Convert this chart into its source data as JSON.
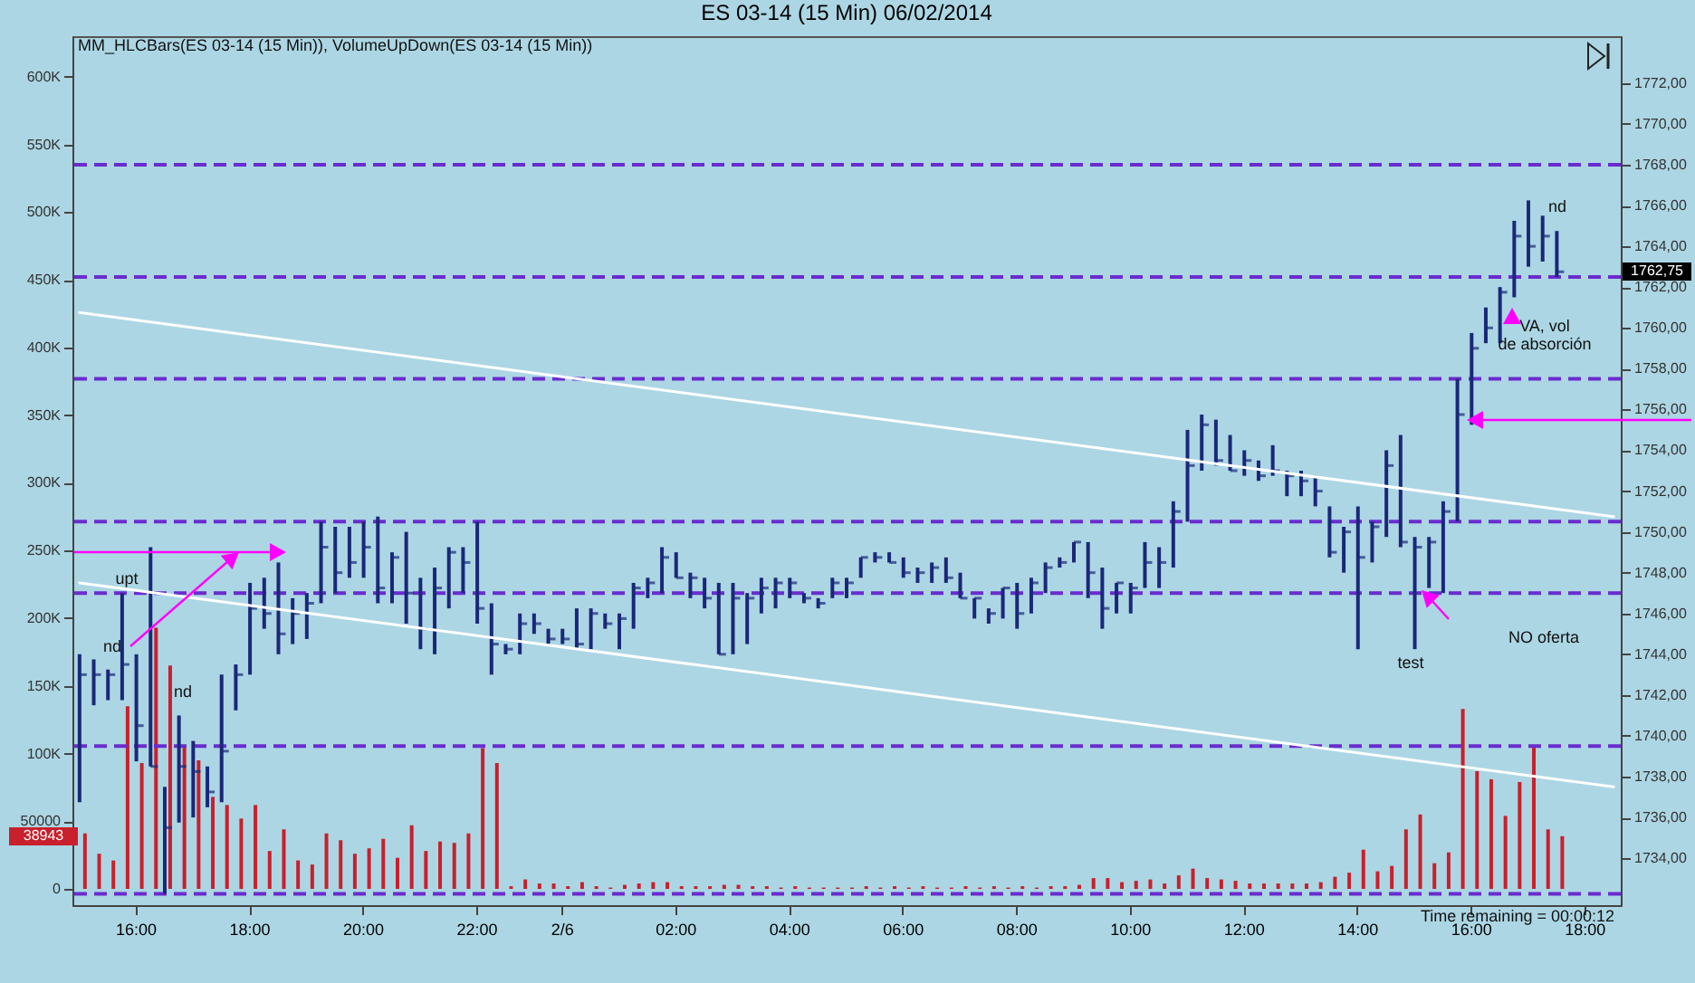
{
  "chart_data": {
    "type": "bar",
    "title": "ES 03-14 (15 Min)  06/02/2014",
    "categories": [
      null,
      null,
      null,
      null,
      "16:00",
      null,
      null,
      null,
      null,
      null,
      null,
      null,
      "18:00",
      null,
      null,
      null,
      null,
      null,
      null,
      null,
      "20:00",
      null,
      null,
      null,
      null,
      null,
      null,
      null,
      "22:00",
      null,
      null,
      null,
      null,
      null,
      "2/6",
      null,
      null,
      null,
      null,
      null,
      null,
      null,
      "02:00",
      null,
      null,
      null,
      null,
      null,
      null,
      null,
      "04:00",
      null,
      null,
      null,
      null,
      null,
      null,
      null,
      "06:00",
      null,
      null,
      null,
      null,
      null,
      null,
      null,
      "08:00",
      null,
      null,
      null,
      null,
      null,
      null,
      null,
      "10:00",
      null,
      null,
      null,
      null,
      null,
      null,
      null,
      "12:00",
      null,
      null,
      null,
      null,
      null,
      null,
      null,
      "14:00",
      null,
      null,
      null,
      null,
      null,
      null,
      null,
      "16:00",
      null,
      null,
      null,
      null,
      null,
      null,
      null,
      "18:00",
      null,
      null
    ],
    "series": [
      {
        "type": "bar",
        "axis": "y2",
        "color": "#c8202c",
        "values": [
          41000,
          26000,
          21000,
          135000,
          93000,
          193000,
          165000,
          106000,
          95000,
          68000,
          62000,
          52000,
          62000,
          28000,
          44000,
          21000,
          18000,
          41000,
          36000,
          26000,
          30000,
          37000,
          23000,
          47000,
          28000,
          35000,
          34000,
          41000,
          104000,
          93000,
          2000,
          7000,
          4000,
          4000,
          2000,
          5000,
          2000,
          1000,
          3000,
          4000,
          5000,
          5000,
          2000,
          2000,
          2000,
          3000,
          3000,
          2000,
          2000,
          1000,
          2000,
          1000,
          1000,
          1000,
          1000,
          2000,
          1000,
          2000,
          1000,
          2000,
          1000,
          1000,
          2000,
          1000,
          2000,
          1000,
          2000,
          1000,
          2000,
          2000,
          3000,
          8000,
          8000,
          5000,
          6000,
          7000,
          4000,
          10000,
          15000,
          8000,
          7000,
          6000,
          4000,
          4000,
          4000,
          4000,
          4000,
          5000,
          9000,
          12000,
          29000,
          13000,
          17000,
          44000,
          55000,
          19000,
          27000,
          133000,
          87000,
          81000,
          54000,
          79000,
          106000,
          44000,
          38943,
          null,
          null,
          null,
          null
        ]
      },
      {
        "type": "bar",
        "color": "#1a2878",
        "base": [
          1736.75,
          1741.5,
          1741.75,
          1741.75,
          1738.75,
          1738.5,
          1732.25,
          1735.75,
          1736,
          1736.5,
          1736.75,
          1741.25,
          1743,
          1745.25,
          1744,
          1744.5,
          1744.75,
          1746.5,
          1747,
          1747.75,
          1747.75,
          1746.5,
          1746.5,
          1745.5,
          1744.25,
          1744,
          1746.25,
          1747,
          1745.5,
          1743,
          1744,
          1744,
          1745,
          1744.5,
          1744.5,
          1744.25,
          1744.25,
          1745.25,
          1744.25,
          1745.25,
          1746.75,
          1747,
          1747.75,
          1746.75,
          1746.25,
          1744,
          1744,
          1744.5,
          1746,
          1746.25,
          1746.75,
          1746.5,
          1746.25,
          1746.75,
          1746.75,
          1747.75,
          1748.5,
          1748.5,
          1747.75,
          1747.5,
          1747.5,
          1747.5,
          1746.75,
          1745.75,
          1745.5,
          1745.75,
          1745.25,
          1746,
          1747,
          1748.25,
          1748.5,
          1746.75,
          1745.25,
          1746,
          1746,
          1747.25,
          1747.25,
          1748.25,
          1750.5,
          1753,
          1753.25,
          1753,
          1752.75,
          1752.5,
          1752.75,
          1751.75,
          1751.75,
          1751.25,
          1748.75,
          1748,
          1744.25,
          1748.5,
          1749.75,
          1749.25,
          1744.25,
          1747.25,
          1747,
          1750.5,
          1755.25,
          1759.25,
          1759.25,
          1761.5,
          1763,
          1763.25,
          1762.5,
          null,
          null,
          null,
          null
        ],
        "values": [
          7.25,
          2.25,
          1.5,
          5.25,
          5.25,
          10.75,
          5.25,
          5.25,
          3.75,
          2,
          6.25,
          2.25,
          4.5,
          2.5,
          4.5,
          2.25,
          2.25,
          4,
          3.25,
          2.5,
          2.75,
          4.25,
          2.5,
          4.5,
          3.5,
          4.25,
          3,
          2.25,
          5,
          3.5,
          0.5,
          2,
          1,
          0.75,
          0.75,
          2,
          2,
          0.75,
          1.75,
          2.25,
          1,
          2.25,
          1.25,
          1.25,
          1.5,
          3.5,
          3.5,
          2.5,
          1.75,
          1.5,
          1,
          0.5,
          0.5,
          1,
          1,
          1,
          0.5,
          0.5,
          1,
          0.75,
          1,
          1.25,
          1.25,
          1,
          0.75,
          1.5,
          2.25,
          1.75,
          1.5,
          0.5,
          1,
          2.75,
          3,
          1.5,
          1.5,
          2.25,
          2,
          3.25,
          4.5,
          2.75,
          2.25,
          1.75,
          1.25,
          1,
          1.5,
          1.25,
          1.25,
          1.5,
          2.5,
          2.25,
          7,
          2,
          4.25,
          5.5,
          5.5,
          2.5,
          4.5,
          7,
          4.5,
          1.75,
          2.75,
          3.75,
          3.25,
          2.25,
          2.25,
          null,
          null,
          null,
          null
        ]
      },
      {
        "type": "scatter",
        "color": "#1a2878",
        "values": [
          1743,
          1743,
          1743,
          1743.5,
          1740.5,
          1738.5,
          1735.5,
          1738.5,
          1738.25,
          1737.25,
          1739.25,
          1743,
          1746.25,
          1746,
          1745,
          1746,
          1746.5,
          1749.25,
          1748,
          1748.5,
          1749.25,
          1747.25,
          1748.75,
          1747,
          1745.25,
          1747.25,
          1749,
          1748.5,
          1746.25,
          1744.5,
          1744.25,
          1745.5,
          1745.5,
          1744.75,
          1744.75,
          1744.5,
          1746,
          1745.5,
          1745.75,
          1747.25,
          1747.5,
          1748.75,
          1747.75,
          1747.75,
          1746.75,
          1744,
          1746.75,
          1746.75,
          1747.25,
          1747.5,
          1747.5,
          1746.75,
          1746.5,
          1747.5,
          1747.5,
          1748.75,
          1748.75,
          1748.5,
          1748,
          1748,
          1748.25,
          1747.75,
          1746.75,
          1746.75,
          1746,
          1747.25,
          1746,
          1747.5,
          1748.25,
          1748.5,
          1749.5,
          1748,
          1746.25,
          1747.5,
          1747.25,
          1748.5,
          1748.5,
          1751,
          1753.25,
          1755.25,
          1753.5,
          1753,
          1753.5,
          1752.75,
          1753,
          1752.75,
          1752.5,
          1752,
          1749,
          1750,
          1748.75,
          1750.25,
          1753.25,
          1749.5,
          1749.25,
          1749.5,
          1751,
          1755.75,
          1759,
          1760,
          1761.75,
          1764.5,
          1764,
          1764.5,
          1762.75,
          null,
          null,
          null,
          null
        ]
      },
      {
        "type": "line",
        "color": "#ffffff",
        "values": [
          1760.75,
          null,
          null,
          null,
          null,
          null,
          null,
          null,
          null,
          null,
          null,
          null,
          null,
          null,
          null,
          null,
          null,
          null,
          null,
          null,
          null,
          null,
          null,
          null,
          null,
          null,
          null,
          null,
          null,
          null,
          null,
          null,
          null,
          null,
          null,
          null,
          null,
          null,
          null,
          null,
          null,
          null,
          null,
          null,
          null,
          null,
          null,
          null,
          null,
          null,
          null,
          null,
          null,
          null,
          null,
          null,
          null,
          null,
          null,
          null,
          null,
          null,
          null,
          null,
          null,
          null,
          null,
          null,
          null,
          null,
          null,
          null,
          null,
          null,
          null,
          null,
          null,
          null,
          null,
          null,
          null,
          null,
          null,
          null,
          null,
          null,
          null,
          null,
          null,
          null,
          null,
          null,
          null,
          null,
          null,
          null,
          null,
          null,
          null,
          null,
          null,
          null,
          null,
          null,
          null,
          null,
          null,
          null,
          1750.75
        ]
      },
      {
        "type": "line",
        "color": "#ffffff",
        "values": [
          1747.5,
          null,
          null,
          null,
          null,
          null,
          null,
          null,
          null,
          null,
          null,
          null,
          null,
          null,
          null,
          null,
          null,
          null,
          null,
          null,
          null,
          null,
          null,
          null,
          null,
          null,
          null,
          null,
          null,
          null,
          null,
          null,
          null,
          null,
          null,
          null,
          null,
          null,
          null,
          null,
          null,
          null,
          null,
          null,
          null,
          null,
          null,
          null,
          null,
          null,
          null,
          null,
          null,
          null,
          null,
          null,
          null,
          null,
          null,
          null,
          null,
          null,
          null,
          null,
          null,
          null,
          null,
          null,
          null,
          null,
          null,
          null,
          null,
          null,
          null,
          null,
          null,
          null,
          null,
          null,
          null,
          null,
          null,
          null,
          null,
          null,
          null,
          null,
          null,
          null,
          null,
          null,
          null,
          null,
          null,
          null,
          null,
          null,
          null,
          null,
          null,
          null,
          null,
          null,
          null,
          null,
          null,
          null,
          1737.5
        ]
      }
    ],
    "ylim": [
      1731.7,
      1774.3
    ],
    "yticks": [
      {
        "value": 1772,
        "label": "1772,00"
      },
      {
        "value": 1770,
        "label": "1770,00"
      },
      {
        "value": 1768,
        "label": "1768,00"
      },
      {
        "value": 1766,
        "label": "1766,00"
      },
      {
        "value": 1764,
        "label": "1764,00"
      },
      {
        "value": 1762,
        "label": "1762,00"
      },
      {
        "value": 1760,
        "label": "1760,00"
      },
      {
        "value": 1758,
        "label": "1758,00"
      },
      {
        "value": 1756,
        "label": "1756,00"
      },
      {
        "value": 1754,
        "label": "1754,00"
      },
      {
        "value": 1752,
        "label": "1752,00"
      },
      {
        "value": 1750,
        "label": "1750,00"
      },
      {
        "value": 1748,
        "label": "1748,00"
      },
      {
        "value": 1746,
        "label": "1746,00"
      },
      {
        "value": 1744,
        "label": "1744,00"
      },
      {
        "value": 1742,
        "label": "1742,00"
      },
      {
        "value": 1740,
        "label": "1740,00"
      },
      {
        "value": 1738,
        "label": "1738,00"
      },
      {
        "value": 1736,
        "label": "1736,00"
      },
      {
        "value": 1734,
        "label": "1734,00"
      }
    ],
    "y2lim": [
      -12000,
      630000
    ],
    "y2ticks": [
      {
        "value": 600000,
        "label": "600K"
      },
      {
        "value": 550000,
        "label": "550K"
      },
      {
        "value": 500000,
        "label": "500K"
      },
      {
        "value": 450000,
        "label": "450K"
      },
      {
        "value": 400000,
        "label": "400K"
      },
      {
        "value": 350000,
        "label": "350K"
      },
      {
        "value": 300000,
        "label": "300K"
      },
      {
        "value": 250000,
        "label": "250K"
      },
      {
        "value": 200000,
        "label": "200K"
      },
      {
        "value": 150000,
        "label": "150K"
      },
      {
        "value": 100000,
        "label": "100K"
      },
      50000,
      0
    ],
    "ref_lines": [
      {
        "axis": "y",
        "value": 1768,
        "color": "#6a2ccf",
        "line_style": "dashed"
      },
      {
        "axis": "y",
        "value": 1762.5,
        "color": "#6a2ccf",
        "line_style": "dashed"
      },
      {
        "axis": "y",
        "value": 1757.5,
        "color": "#6a2ccf",
        "line_style": "dashed"
      },
      {
        "axis": "y",
        "value": 1750.5,
        "color": "#6a2ccf",
        "line_style": "dashed"
      },
      {
        "axis": "y",
        "value": 1747,
        "color": "#6a2ccf",
        "line_style": "dashed"
      },
      {
        "axis": "y",
        "value": 1739.5,
        "color": "#6a2ccf",
        "line_style": "dashed"
      },
      {
        "axis": "y",
        "value": 1732.25,
        "color": "#6a2ccf",
        "line_style": "dashed"
      }
    ],
    "annotations": [
      "MM_HLCBars(ES 03-14 (15 Min)), VolumeUpDown(ES 03-14 (15 Min))",
      {
        "text": "upt",
        "y": 1747
      },
      "nd",
      "nd",
      "test",
      "NO oferta",
      "VA, vol de absorción",
      "nd",
      "Time remaining = 00:00:12",
      "38943",
      "1762,75"
    ]
  }
}
